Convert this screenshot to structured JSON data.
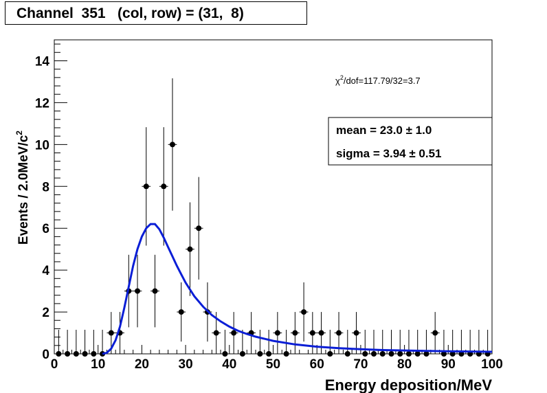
{
  "title": "Channel  351   (col, row) = (31,  8)",
  "chart_data": {
    "type": "scatter",
    "xlabel": "Energy deposition/MeV",
    "ylabel": "Events / 2.0MeV/c",
    "ylabel_sup": "2",
    "xlim": [
      0,
      100
    ],
    "ylim": [
      0,
      15
    ],
    "x_ticks": [
      "0",
      "10",
      "20",
      "30",
      "40",
      "50",
      "60",
      "70",
      "80",
      "90",
      "100"
    ],
    "y_ticks": [
      "0",
      "2",
      "4",
      "6",
      "8",
      "10",
      "12",
      "14"
    ],
    "bin_width": 2,
    "series": [
      {
        "x": [
          1,
          3,
          5,
          7,
          9,
          11,
          13,
          15,
          17,
          19,
          21,
          23,
          25,
          27,
          29,
          31,
          33,
          35,
          37,
          39,
          41,
          43,
          45,
          47,
          49,
          51,
          53,
          55,
          57,
          59,
          61,
          63,
          65,
          67,
          69,
          71,
          73,
          75,
          77,
          79,
          81,
          83,
          85,
          87,
          89,
          91,
          93,
          95,
          97,
          99
        ],
        "values": [
          0,
          0,
          0,
          0,
          0,
          0,
          1,
          1,
          3,
          3,
          8,
          3,
          8,
          10,
          2,
          5,
          6,
          2,
          1,
          0,
          1,
          0,
          1,
          0,
          0,
          1,
          0,
          1,
          2,
          1,
          1,
          0,
          1,
          0,
          1,
          0,
          0,
          0,
          0,
          0,
          0,
          0,
          0,
          1,
          0,
          0,
          0,
          0,
          0,
          0
        ]
      }
    ],
    "fit": {
      "color": "#0a1ed6",
      "x": [
        11,
        12,
        13,
        14,
        15,
        16,
        17,
        18,
        19,
        20,
        21,
        22,
        23,
        24,
        25,
        26,
        27,
        28,
        29,
        30,
        32,
        34,
        36,
        38,
        40,
        42,
        44,
        46,
        48,
        50,
        55,
        60,
        65,
        70,
        75,
        80,
        85,
        90,
        95,
        100
      ],
      "values": [
        0.0,
        0.05,
        0.25,
        0.65,
        1.3,
        2.2,
        3.2,
        4.2,
        5.0,
        5.6,
        6.0,
        6.2,
        6.2,
        5.95,
        5.55,
        5.1,
        4.65,
        4.2,
        3.8,
        3.4,
        2.75,
        2.25,
        1.85,
        1.55,
        1.3,
        1.1,
        0.95,
        0.82,
        0.72,
        0.62,
        0.45,
        0.34,
        0.27,
        0.22,
        0.18,
        0.16,
        0.14,
        0.12,
        0.11,
        0.1
      ]
    },
    "stats": {
      "chi2": "117.79/32=3.7",
      "mean_label": "mean =",
      "mean_value": "23.0",
      "mean_err": "1.0",
      "sigma_label": "sigma =",
      "sigma_value": "3.94",
      "sigma_err": "0.51"
    }
  }
}
